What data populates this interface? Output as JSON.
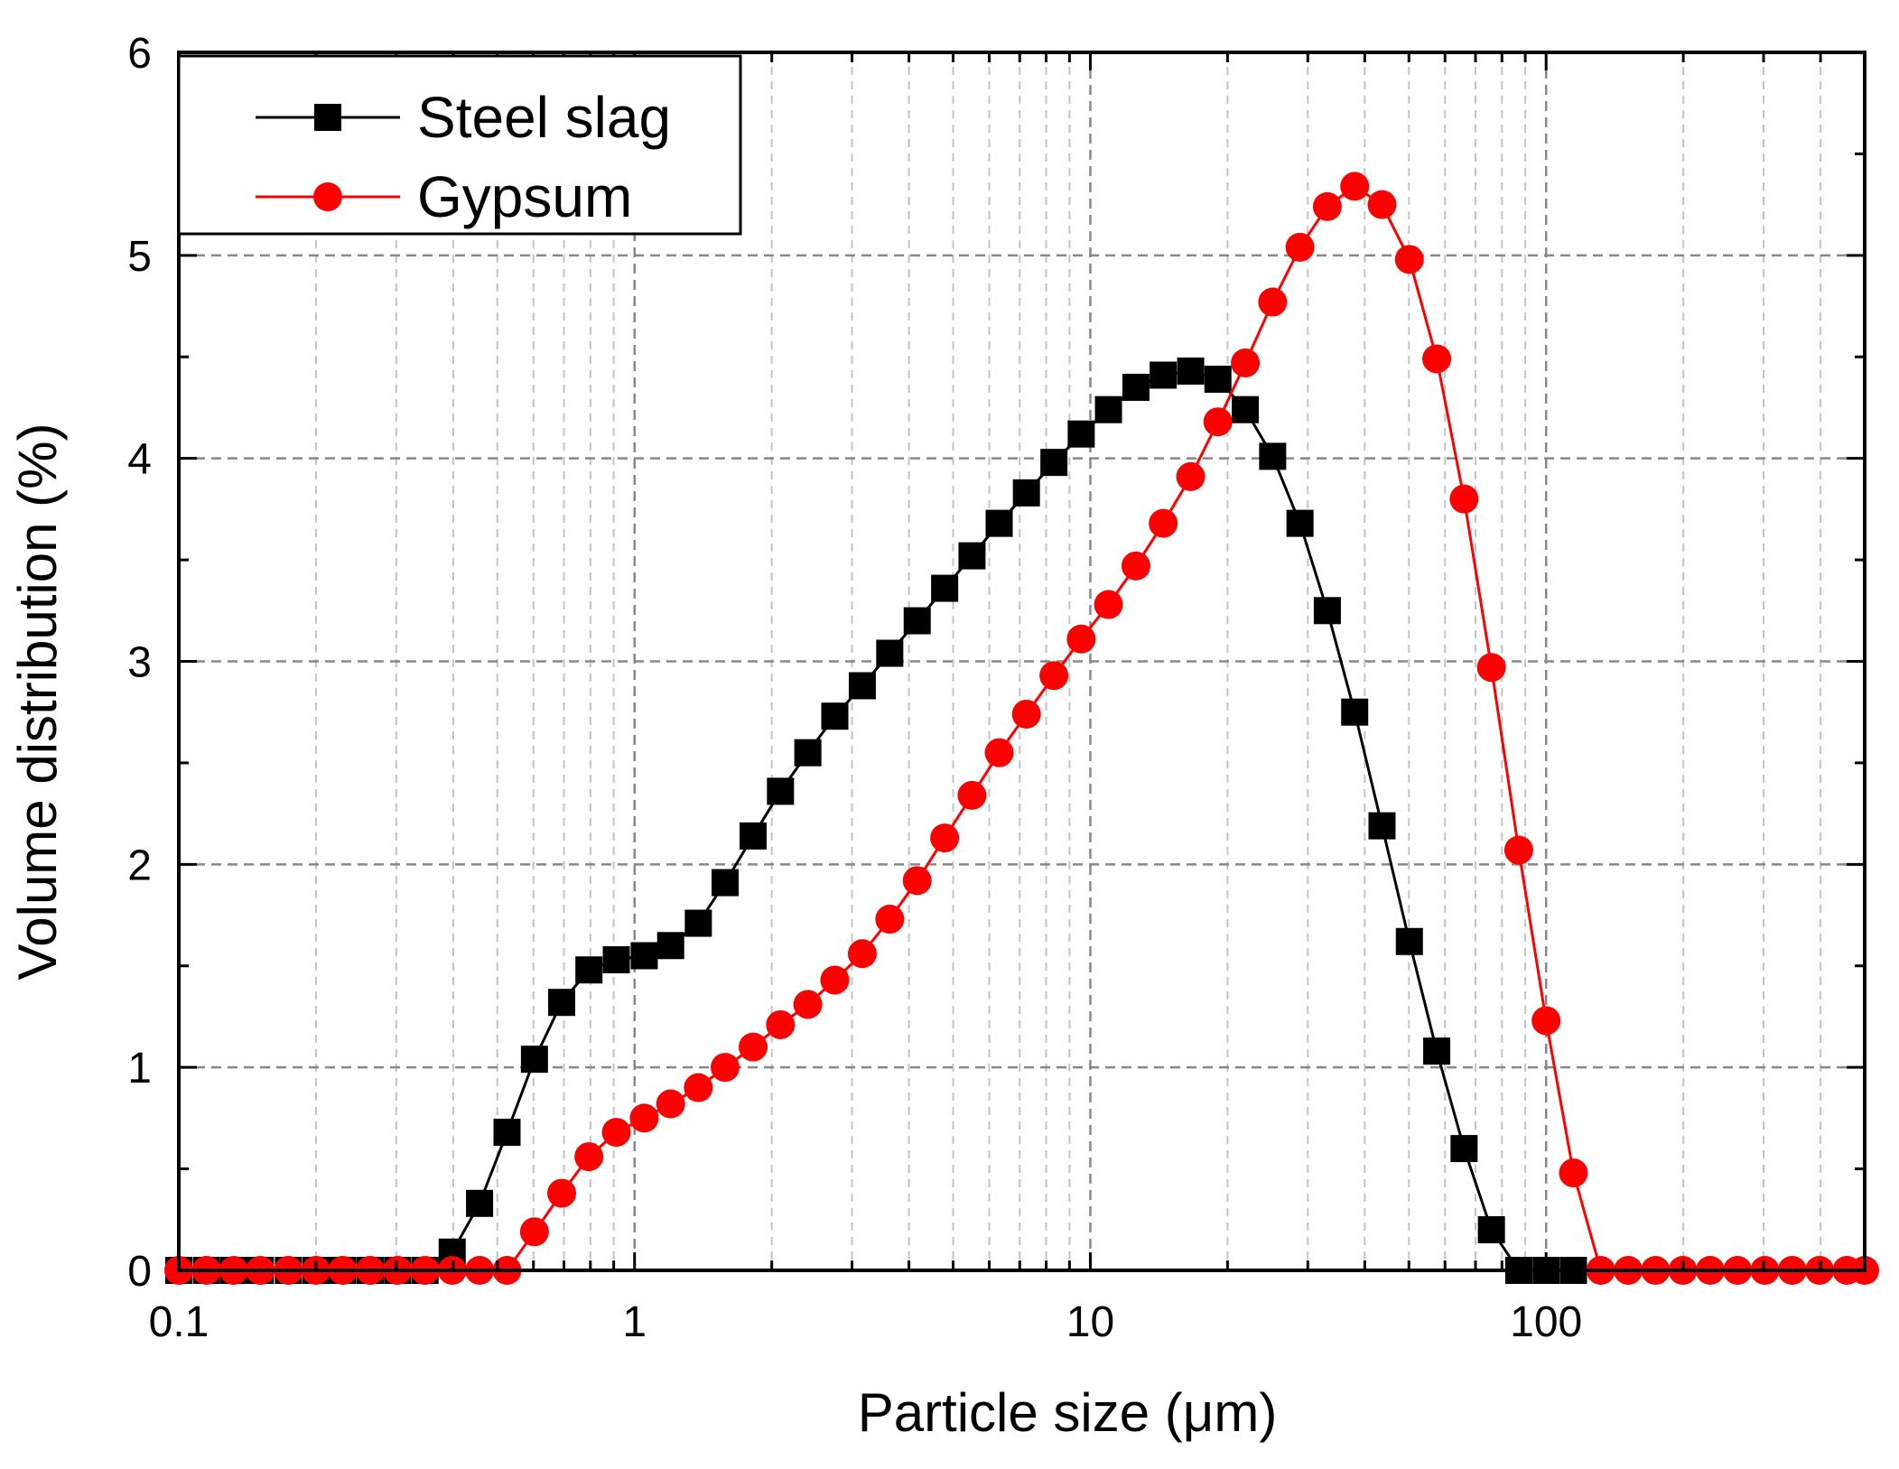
{
  "chart_data": {
    "type": "line",
    "xscale": "log",
    "xlabel": "Particle size (μm)",
    "ylabel": "Volume distribution (%)",
    "xlim": [
      0.1,
      500
    ],
    "ylim": [
      0,
      6
    ],
    "xticks": [
      {
        "value": 0.1,
        "label": "0.1"
      },
      {
        "value": 1,
        "label": "1"
      },
      {
        "value": 10,
        "label": "10"
      },
      {
        "value": 100,
        "label": "100"
      }
    ],
    "yticks": [
      {
        "value": 0,
        "label": "0"
      },
      {
        "value": 1,
        "label": "1"
      },
      {
        "value": 2,
        "label": "2"
      },
      {
        "value": 3,
        "label": "3"
      },
      {
        "value": 4,
        "label": "4"
      },
      {
        "value": 5,
        "label": "5"
      },
      {
        "value": 6,
        "label": "6"
      }
    ],
    "grid": true,
    "legend_position": "top-left",
    "series": [
      {
        "name": "Steel slag",
        "color": "#000000",
        "marker": "square",
        "points": [
          [
            0.1,
            0
          ],
          [
            0.115,
            0
          ],
          [
            0.132,
            0
          ],
          [
            0.151,
            0
          ],
          [
            0.174,
            0
          ],
          [
            0.2,
            0
          ],
          [
            0.229,
            0
          ],
          [
            0.263,
            0
          ],
          [
            0.302,
            0
          ],
          [
            0.347,
            0
          ],
          [
            0.398,
            0.09
          ],
          [
            0.457,
            0.33
          ],
          [
            0.525,
            0.68
          ],
          [
            0.603,
            1.04
          ],
          [
            0.692,
            1.32
          ],
          [
            0.794,
            1.48
          ],
          [
            0.912,
            1.53
          ],
          [
            1.05,
            1.55
          ],
          [
            1.2,
            1.6
          ],
          [
            1.38,
            1.71
          ],
          [
            1.58,
            1.91
          ],
          [
            1.82,
            2.14
          ],
          [
            2.09,
            2.36
          ],
          [
            2.4,
            2.55
          ],
          [
            2.75,
            2.73
          ],
          [
            3.16,
            2.88
          ],
          [
            3.63,
            3.04
          ],
          [
            4.17,
            3.2
          ],
          [
            4.79,
            3.36
          ],
          [
            5.5,
            3.52
          ],
          [
            6.31,
            3.68
          ],
          [
            7.24,
            3.83
          ],
          [
            8.32,
            3.98
          ],
          [
            9.55,
            4.12
          ],
          [
            10.96,
            4.24
          ],
          [
            12.59,
            4.35
          ],
          [
            14.45,
            4.41
          ],
          [
            16.6,
            4.43
          ],
          [
            19.05,
            4.39
          ],
          [
            21.88,
            4.24
          ],
          [
            25.12,
            4.01
          ],
          [
            28.84,
            3.68
          ],
          [
            33.11,
            3.25
          ],
          [
            38.02,
            2.75
          ],
          [
            43.65,
            2.19
          ],
          [
            50.12,
            1.62
          ],
          [
            57.54,
            1.08
          ],
          [
            66.07,
            0.6
          ],
          [
            75.86,
            0.2
          ],
          [
            87.1,
            0
          ],
          [
            100,
            0
          ],
          [
            114.8,
            0
          ]
        ]
      },
      {
        "name": "Gypsum",
        "color": "#ff0000",
        "marker": "circle",
        "points": [
          [
            0.1,
            0
          ],
          [
            0.115,
            0
          ],
          [
            0.132,
            0
          ],
          [
            0.151,
            0
          ],
          [
            0.174,
            0
          ],
          [
            0.2,
            0
          ],
          [
            0.229,
            0
          ],
          [
            0.263,
            0
          ],
          [
            0.302,
            0
          ],
          [
            0.347,
            0
          ],
          [
            0.398,
            0
          ],
          [
            0.457,
            0
          ],
          [
            0.525,
            0
          ],
          [
            0.603,
            0.19
          ],
          [
            0.692,
            0.38
          ],
          [
            0.794,
            0.56
          ],
          [
            0.912,
            0.68
          ],
          [
            1.05,
            0.75
          ],
          [
            1.2,
            0.82
          ],
          [
            1.38,
            0.9
          ],
          [
            1.58,
            1
          ],
          [
            1.82,
            1.1
          ],
          [
            2.09,
            1.21
          ],
          [
            2.4,
            1.31
          ],
          [
            2.75,
            1.43
          ],
          [
            3.16,
            1.56
          ],
          [
            3.63,
            1.73
          ],
          [
            4.17,
            1.92
          ],
          [
            4.79,
            2.13
          ],
          [
            5.5,
            2.34
          ],
          [
            6.31,
            2.55
          ],
          [
            7.24,
            2.74
          ],
          [
            8.32,
            2.93
          ],
          [
            9.55,
            3.11
          ],
          [
            10.96,
            3.28
          ],
          [
            12.59,
            3.47
          ],
          [
            14.45,
            3.68
          ],
          [
            16.6,
            3.91
          ],
          [
            19.05,
            4.18
          ],
          [
            21.88,
            4.47
          ],
          [
            25.12,
            4.77
          ],
          [
            28.84,
            5.04
          ],
          [
            33.11,
            5.24
          ],
          [
            38.02,
            5.34
          ],
          [
            43.65,
            5.25
          ],
          [
            50.12,
            4.98
          ],
          [
            57.54,
            4.49
          ],
          [
            66.07,
            3.8
          ],
          [
            75.86,
            2.97
          ],
          [
            87.1,
            2.07
          ],
          [
            100,
            1.23
          ],
          [
            114.8,
            0.48
          ],
          [
            131.8,
            0
          ],
          [
            151.4,
            0
          ],
          [
            173.8,
            0
          ],
          [
            199.5,
            0
          ],
          [
            229.1,
            0
          ],
          [
            263,
            0
          ],
          [
            302,
            0
          ],
          [
            346.7,
            0
          ],
          [
            398.1,
            0
          ],
          [
            457.1,
            0
          ],
          [
            500,
            0
          ]
        ]
      }
    ]
  }
}
